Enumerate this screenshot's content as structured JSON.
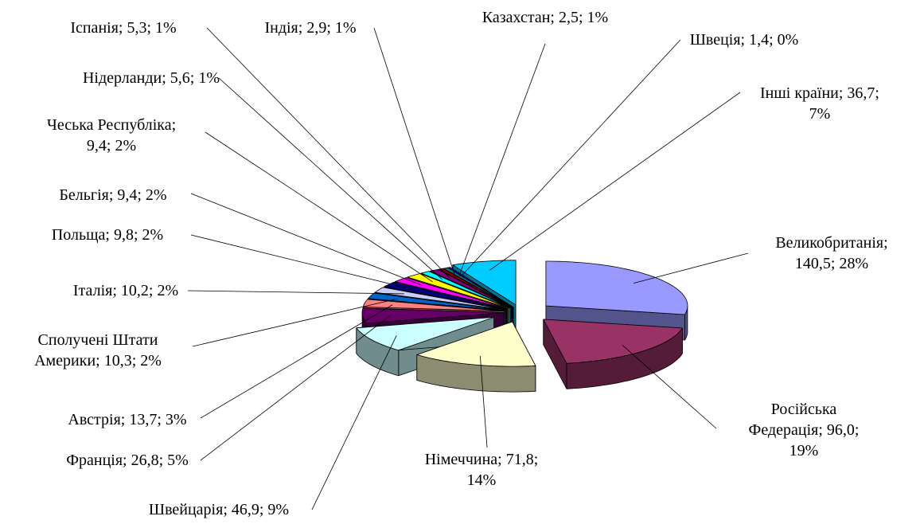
{
  "chart_data": {
    "type": "pie3d",
    "values": [
      140.5,
      96.0,
      71.8,
      46.9,
      26.8,
      13.7,
      10.3,
      10.2,
      9.8,
      9.4,
      9.4,
      5.6,
      5.3,
      2.9,
      2.5,
      1.4,
      36.7
    ],
    "value_labels": [
      "Великобританія;\n140,5; 28%",
      "Російська\nФедерація; 96,0;\n19%",
      "Німеччина; 71,8;\n14%",
      "Швейцарія; 46,9; 9%",
      "Франція; 26,8; 5%",
      "Австрія; 13,7; 3%",
      "Сполучені Штати\nАмерики; 10,3; 2%",
      "Італія; 10,2; 2%",
      "Польща; 9,8; 2%",
      "Бельгія; 9,4; 2%",
      "Чеська Республіка;\n9,4; 2%",
      "Нідерланди; 5,6; 1%",
      "Іспанія; 5,3; 1%",
      "Індія; 2,9; 1%",
      "Казахстан; 2,5; 1%",
      "Швеція; 1,4; 0%",
      "Інші країни; 36,7;\n7%"
    ],
    "colors": [
      "#9999ff",
      "#993366",
      "#ffffcc",
      "#ccffff",
      "#660066",
      "#ff8080",
      "#0066cc",
      "#ccccff",
      "#000080",
      "#ff00ff",
      "#ffff00",
      "#00ffff",
      "#800080",
      "#800000",
      "#008080",
      "#0000ff",
      "#00ccff"
    ]
  }
}
